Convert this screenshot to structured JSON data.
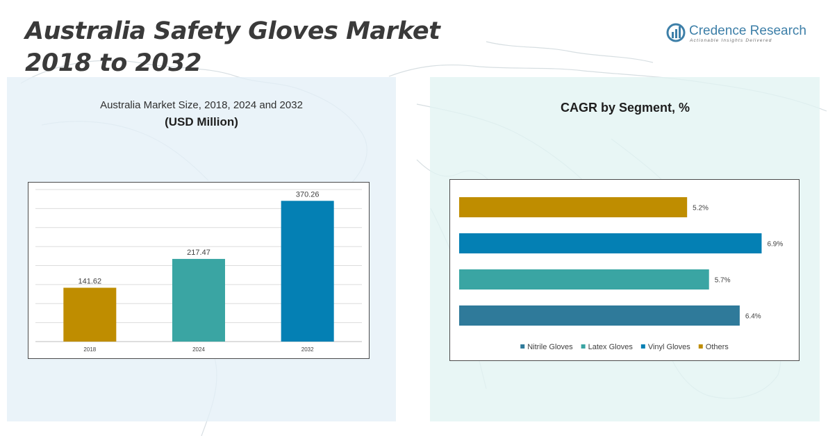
{
  "header": {
    "title_line1": "Australia Safety Gloves Market",
    "title_line2": "2018 to 2032"
  },
  "logo": {
    "name": "Credence Research",
    "tagline": "Actionable Insights Delivered",
    "icon": "credence-logo-icon",
    "color": "#3d7fa8"
  },
  "left_panel": {
    "title": "Australia Market Size, 2018, 2024 and 2032",
    "unit": "(USD Million)"
  },
  "right_panel": {
    "title": "CAGR by Segment, %"
  },
  "chart_data": [
    {
      "type": "bar",
      "title": "Australia Market Size, 2018, 2024 and 2032",
      "ylabel": "USD Million",
      "categories": [
        "2018",
        "2024",
        "2032"
      ],
      "values": [
        141.62,
        217.47,
        370.26
      ],
      "value_labels": [
        "141.62",
        "217.47",
        "370.26"
      ],
      "colors": [
        "#bf8d00",
        "#3aa5a3",
        "#0480b4"
      ],
      "ylim": [
        0,
        400
      ],
      "grid": true,
      "legend": "none"
    },
    {
      "type": "bar",
      "orientation": "horizontal",
      "title": "CAGR by Segment, %",
      "categories": [
        "Others",
        "Vinyl Gloves",
        "Latex Gloves",
        "Nitrile Gloves"
      ],
      "values": [
        5.2,
        6.9,
        5.7,
        6.4
      ],
      "value_labels": [
        "5.2%",
        "6.9%",
        "5.7%",
        "6.4%"
      ],
      "colors": [
        "#bf8d00",
        "#0480b4",
        "#3aa5a3",
        "#2f7a9a"
      ],
      "xlim": [
        0,
        7.4
      ],
      "grid": false,
      "legend": "bottom",
      "legend_order": [
        "Nitrile Gloves",
        "Latex Gloves",
        "Vinyl Gloves",
        "Others"
      ]
    }
  ]
}
